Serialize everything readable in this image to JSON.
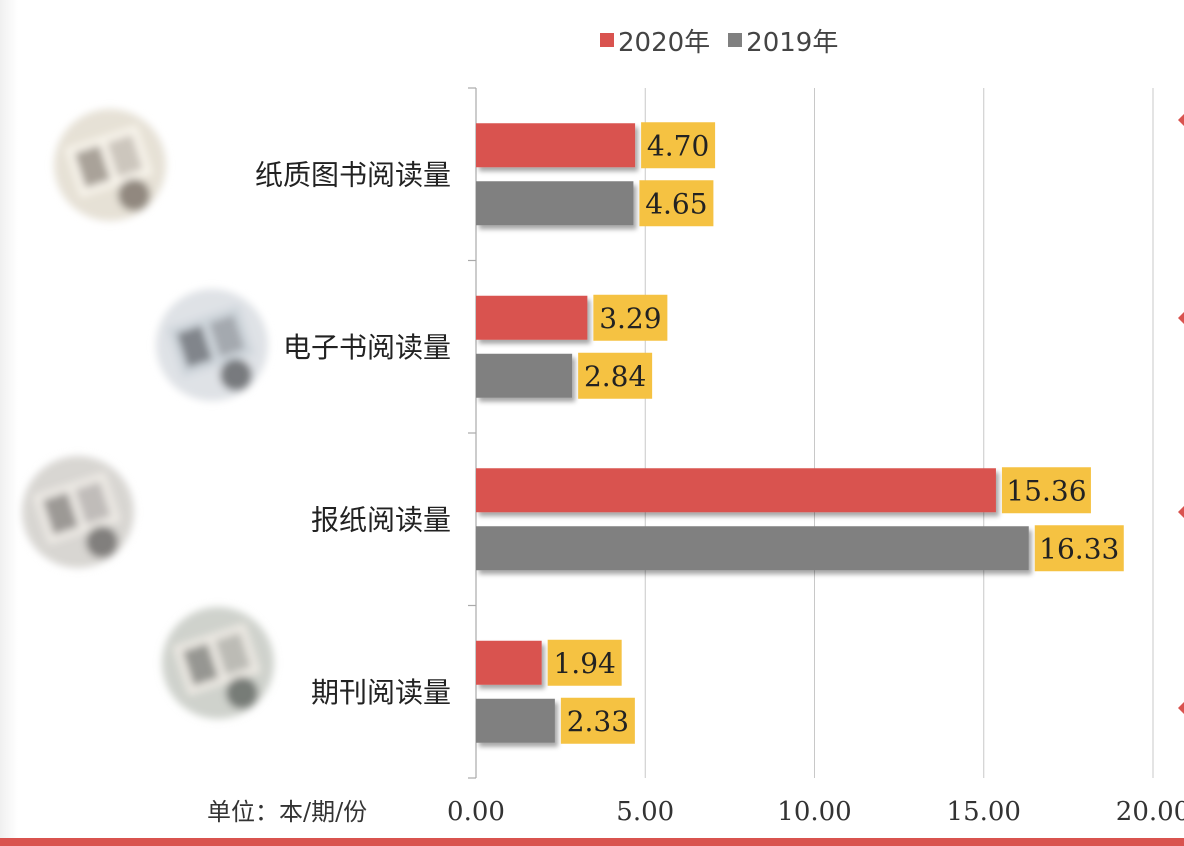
{
  "chart_data": {
    "type": "bar",
    "orientation": "horizontal",
    "categories": [
      "纸质图书阅读量",
      "电子书阅读量",
      "报纸阅读量",
      "期刊阅读量"
    ],
    "series": [
      {
        "name": "2020年",
        "color": "#d9534f",
        "values": [
          4.7,
          3.29,
          15.36,
          1.94
        ]
      },
      {
        "name": "2019年",
        "color": "#808080",
        "values": [
          4.65,
          2.84,
          16.33,
          2.33
        ]
      }
    ],
    "value_labels": {
      "2020年": [
        "4.70",
        "3.29",
        "15.36",
        "1.94"
      ],
      "2019年": [
        "4.65",
        "2.84",
        "16.33",
        "2.33"
      ]
    },
    "xlim": [
      0,
      20
    ],
    "xticks": [
      "0.00",
      "5.00",
      "10.00",
      "15.00",
      "20.00"
    ],
    "unit_label": "单位：本/期/份",
    "grid": "vertical",
    "legend_position": "top",
    "label_box_color": "#f5c242",
    "category_icons": [
      "open-paper-book-photo",
      "e-reader-photo",
      "newspaper-photo",
      "magazine-photo"
    ]
  }
}
